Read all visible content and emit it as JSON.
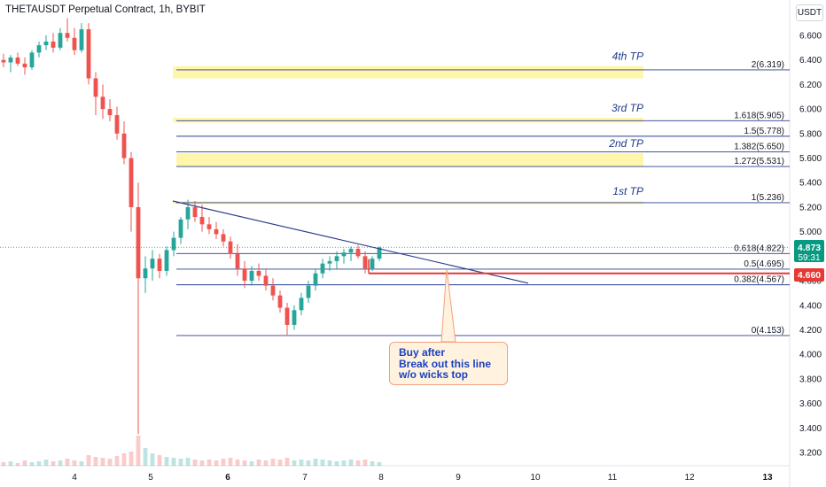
{
  "header": {
    "title": "THETAUSDT Perpetual Contract, 1h, BYBIT",
    "currency": "USDT"
  },
  "colors": {
    "up": "#26a69a",
    "down": "#ef5350",
    "tp_zone": "#fff59d",
    "fib_line": "#2a3f8f",
    "trendline": "#2f3f8f",
    "support": "#e53935",
    "price_badge": "#089981",
    "level_badge": "#e53935"
  },
  "chart_data": {
    "type": "candlestick",
    "symbol": "THETAUSDT",
    "timeframe": "1h",
    "exchange": "BYBIT",
    "ylim": [
      3.1,
      6.75
    ],
    "y_ticks": [
      "6.600",
      "6.400",
      "6.200",
      "6.000",
      "5.800",
      "5.600",
      "5.400",
      "5.200",
      "5.000",
      "4.800",
      "4.600",
      "4.400",
      "4.200",
      "4.000",
      "3.800",
      "3.600",
      "3.400",
      "3.200"
    ],
    "x_ticks": [
      "4",
      "5",
      "6",
      "7",
      "8",
      "9",
      "10",
      "11",
      "12",
      "13"
    ],
    "candles": [
      {
        "o": 6.4,
        "h": 6.45,
        "l": 6.34,
        "c": 6.38
      },
      {
        "o": 6.38,
        "h": 6.44,
        "l": 6.3,
        "c": 6.42
      },
      {
        "o": 6.42,
        "h": 6.46,
        "l": 6.35,
        "c": 6.37
      },
      {
        "o": 6.37,
        "h": 6.42,
        "l": 6.28,
        "c": 6.34
      },
      {
        "o": 6.34,
        "h": 6.48,
        "l": 6.32,
        "c": 6.46
      },
      {
        "o": 6.46,
        "h": 6.55,
        "l": 6.42,
        "c": 6.52
      },
      {
        "o": 6.52,
        "h": 6.6,
        "l": 6.48,
        "c": 6.55
      },
      {
        "o": 6.55,
        "h": 6.62,
        "l": 6.46,
        "c": 6.5
      },
      {
        "o": 6.5,
        "h": 6.66,
        "l": 6.48,
        "c": 6.62
      },
      {
        "o": 6.62,
        "h": 6.74,
        "l": 6.55,
        "c": 6.58
      },
      {
        "o": 6.58,
        "h": 6.66,
        "l": 6.44,
        "c": 6.48
      },
      {
        "o": 6.48,
        "h": 6.7,
        "l": 6.46,
        "c": 6.65
      },
      {
        "o": 6.65,
        "h": 6.7,
        "l": 6.2,
        "c": 6.25
      },
      {
        "o": 6.25,
        "h": 6.3,
        "l": 5.95,
        "c": 6.1
      },
      {
        "o": 6.1,
        "h": 6.2,
        "l": 5.92,
        "c": 6.0
      },
      {
        "o": 6.0,
        "h": 6.08,
        "l": 5.9,
        "c": 5.95
      },
      {
        "o": 5.95,
        "h": 6.02,
        "l": 5.75,
        "c": 5.8
      },
      {
        "o": 5.8,
        "h": 5.9,
        "l": 5.55,
        "c": 5.6
      },
      {
        "o": 5.6,
        "h": 5.65,
        "l": 5.0,
        "c": 5.2
      },
      {
        "o": 5.2,
        "h": 5.4,
        "l": 3.35,
        "c": 4.62
      },
      {
        "o": 4.62,
        "h": 4.8,
        "l": 4.5,
        "c": 4.7
      },
      {
        "o": 4.7,
        "h": 4.85,
        "l": 4.6,
        "c": 4.78
      },
      {
        "o": 4.78,
        "h": 4.82,
        "l": 4.62,
        "c": 4.68
      },
      {
        "o": 4.68,
        "h": 4.88,
        "l": 4.64,
        "c": 4.85
      },
      {
        "o": 4.85,
        "h": 5.0,
        "l": 4.8,
        "c": 4.95
      },
      {
        "o": 4.95,
        "h": 5.12,
        "l": 4.9,
        "c": 5.1
      },
      {
        "o": 5.1,
        "h": 5.26,
        "l": 5.02,
        "c": 5.2
      },
      {
        "o": 5.2,
        "h": 5.25,
        "l": 5.08,
        "c": 5.12
      },
      {
        "o": 5.12,
        "h": 5.22,
        "l": 5.0,
        "c": 5.06
      },
      {
        "o": 5.06,
        "h": 5.12,
        "l": 4.98,
        "c": 5.02
      },
      {
        "o": 5.02,
        "h": 5.08,
        "l": 4.94,
        "c": 4.98
      },
      {
        "o": 4.98,
        "h": 5.02,
        "l": 4.88,
        "c": 4.92
      },
      {
        "o": 4.92,
        "h": 4.96,
        "l": 4.78,
        "c": 4.82
      },
      {
        "o": 4.82,
        "h": 4.9,
        "l": 4.64,
        "c": 4.7
      },
      {
        "o": 4.7,
        "h": 4.76,
        "l": 4.54,
        "c": 4.6
      },
      {
        "o": 4.6,
        "h": 4.72,
        "l": 4.56,
        "c": 4.68
      },
      {
        "o": 4.68,
        "h": 4.74,
        "l": 4.6,
        "c": 4.64
      },
      {
        "o": 4.64,
        "h": 4.7,
        "l": 4.52,
        "c": 4.56
      },
      {
        "o": 4.56,
        "h": 4.62,
        "l": 4.44,
        "c": 4.48
      },
      {
        "o": 4.48,
        "h": 4.52,
        "l": 4.34,
        "c": 4.38
      },
      {
        "o": 4.38,
        "h": 4.42,
        "l": 4.16,
        "c": 4.24
      },
      {
        "o": 4.24,
        "h": 4.4,
        "l": 4.2,
        "c": 4.36
      },
      {
        "o": 4.36,
        "h": 4.5,
        "l": 4.32,
        "c": 4.46
      },
      {
        "o": 4.46,
        "h": 4.6,
        "l": 4.42,
        "c": 4.56
      },
      {
        "o": 4.56,
        "h": 4.7,
        "l": 4.52,
        "c": 4.66
      },
      {
        "o": 4.66,
        "h": 4.78,
        "l": 4.62,
        "c": 4.74
      },
      {
        "o": 4.74,
        "h": 4.8,
        "l": 4.68,
        "c": 4.76
      },
      {
        "o": 4.76,
        "h": 4.84,
        "l": 4.7,
        "c": 4.8
      },
      {
        "o": 4.8,
        "h": 4.86,
        "l": 4.74,
        "c": 4.83
      },
      {
        "o": 4.83,
        "h": 4.88,
        "l": 4.76,
        "c": 4.86
      },
      {
        "o": 4.86,
        "h": 4.89,
        "l": 4.78,
        "c": 4.8
      },
      {
        "o": 4.8,
        "h": 4.84,
        "l": 4.66,
        "c": 4.7
      },
      {
        "o": 4.7,
        "h": 4.8,
        "l": 4.68,
        "c": 4.78
      },
      {
        "o": 4.78,
        "h": 4.88,
        "l": 4.76,
        "c": 4.87
      }
    ],
    "fib_levels": [
      {
        "label": "2(6.319)",
        "value": 6.319
      },
      {
        "label": "1.618(5.905)",
        "value": 5.905
      },
      {
        "label": "1.5(5.778)",
        "value": 5.778
      },
      {
        "label": "1.382(5.650)",
        "value": 5.65
      },
      {
        "label": "1.272(5.531)",
        "value": 5.531
      },
      {
        "label": "1(5.236)",
        "value": 5.236
      },
      {
        "label": "0.618(4.822)",
        "value": 4.822
      },
      {
        "label": "0.5(4.695)",
        "value": 4.695
      },
      {
        "label": "0.382(4.567)",
        "value": 4.567
      },
      {
        "label": "0(4.153)",
        "value": 4.153
      }
    ],
    "tp_zones": [
      {
        "label": "4th TP",
        "low": 6.25,
        "high": 6.35
      },
      {
        "label": "3rd TP",
        "low": 5.89,
        "high": 5.93
      },
      {
        "label": "2nd TP",
        "low": 5.53,
        "high": 5.64
      },
      {
        "label": "1st TP",
        "low": 5.225,
        "high": 5.25
      }
    ],
    "current_price": {
      "value": "4.873",
      "timer": "59:31"
    },
    "support_level": {
      "value": "4.660"
    },
    "trendline": {
      "from": 5.25,
      "to": 4.58
    }
  },
  "annotation": {
    "lines": [
      "Buy after",
      "Break out this line",
      "w/o wicks top"
    ]
  }
}
